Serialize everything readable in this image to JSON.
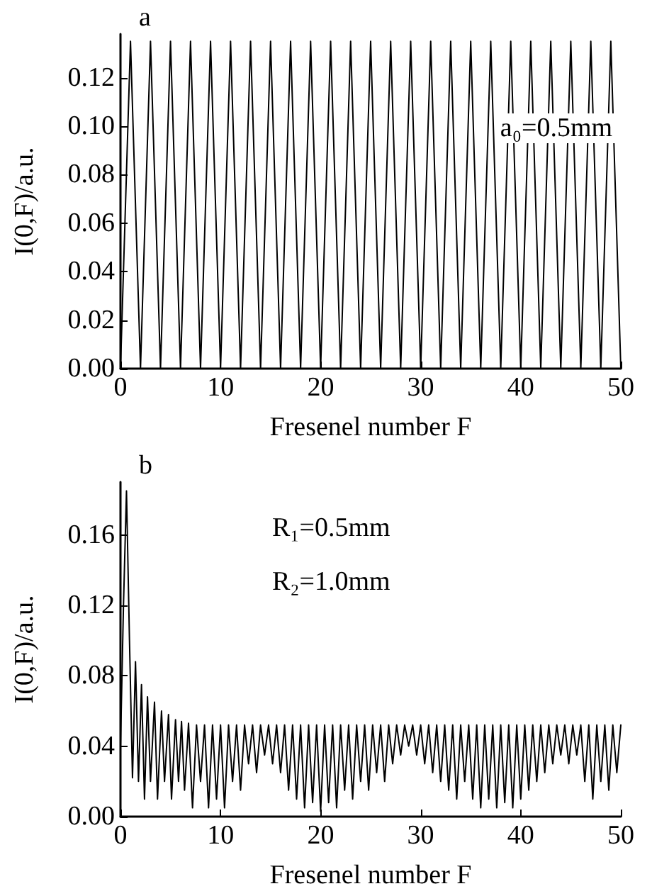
{
  "chart_data": [
    {
      "type": "line",
      "xlabel": "Fresenel number F",
      "ylabel": "I(0,F)/a.u.",
      "annotations": [
        "a",
        "a₀=0.5mm"
      ],
      "x": [
        0,
        1,
        2,
        3,
        4,
        5,
        6,
        7,
        8,
        9,
        10,
        11,
        12,
        13,
        14,
        15,
        16,
        17,
        18,
        19,
        20,
        21,
        22,
        23,
        24,
        25,
        26,
        27,
        28,
        29,
        30,
        31,
        32,
        33,
        34,
        35,
        36,
        37,
        38,
        39,
        40,
        41,
        42,
        43,
        44,
        45,
        46,
        47,
        48,
        49,
        50
      ],
      "series": [
        {
          "color": "#000000",
          "values": [
            0,
            0.135,
            0,
            0.135,
            0,
            0.135,
            0,
            0.135,
            0,
            0.135,
            0,
            0.135,
            0,
            0.135,
            0,
            0.135,
            0,
            0.135,
            0,
            0.135,
            0,
            0.135,
            0,
            0.135,
            0,
            0.135,
            0,
            0.135,
            0,
            0.135,
            0,
            0.135,
            0,
            0.135,
            0,
            0.135,
            0,
            0.135,
            0,
            0.135,
            0,
            0.135,
            0,
            0.135,
            0,
            0.135,
            0,
            0.135,
            0,
            0.135,
            0
          ]
        }
      ],
      "xlim": [
        0,
        50
      ],
      "xticks": [
        0,
        10,
        20,
        30,
        40,
        50
      ],
      "ylim": [
        0,
        0.138
      ],
      "yticks": [
        {
          "value": 0,
          "label": "0.00"
        },
        {
          "value": 0.02,
          "label": "0.02"
        },
        {
          "value": 0.04,
          "label": "0.04"
        },
        {
          "value": 0.06,
          "label": "0.06"
        },
        {
          "value": 0.08,
          "label": "0.08"
        },
        {
          "value": 0.1,
          "label": "0.10"
        },
        {
          "value": 0.12,
          "label": "0.12"
        }
      ],
      "grid": false,
      "marker": "none",
      "line_style": "solid"
    },
    {
      "type": "line",
      "xlabel": "Fresenel number F",
      "ylabel": "I(0,F)/a.u.",
      "annotations": [
        "b",
        "R₁=0.5mm",
        "R₂=1.0mm"
      ],
      "x": [
        0,
        0.3,
        0.6,
        0.9,
        1.2,
        1.5,
        1.8,
        2.1,
        2.4,
        2.7,
        3.0,
        3.4,
        3.7,
        4.1,
        4.4,
        4.8,
        5.1,
        5.5,
        5.8,
        6.1,
        6.4,
        6.8,
        7.2,
        7.6,
        8,
        8.4,
        8.8,
        9.2,
        9.6,
        10,
        10.4,
        10.8,
        11.2,
        11.6,
        12,
        12.4,
        12.8,
        13.2,
        13.6,
        14,
        14.4,
        14.8,
        15.2,
        15.6,
        16,
        16.4,
        16.8,
        17.2,
        17.6,
        18,
        18.4,
        18.8,
        19.2,
        19.6,
        20,
        20.4,
        20.8,
        21.2,
        21.6,
        22,
        22.4,
        22.8,
        23.2,
        23.6,
        24,
        24.4,
        24.8,
        25.2,
        25.6,
        26,
        26.4,
        26.8,
        27.2,
        27.6,
        28,
        28.4,
        28.8,
        29.2,
        29.6,
        30,
        30.4,
        30.8,
        31.2,
        31.6,
        32,
        32.4,
        32.8,
        33.2,
        33.6,
        34,
        34.4,
        34.8,
        35.2,
        35.6,
        36,
        36.4,
        36.8,
        37.2,
        37.6,
        38,
        38.4,
        38.8,
        39.2,
        39.6,
        40,
        40.4,
        40.8,
        41.2,
        41.6,
        42,
        42.4,
        42.8,
        43.2,
        43.6,
        44,
        44.4,
        44.8,
        45.2,
        45.6,
        46,
        46.4,
        46.8,
        47.2,
        47.6,
        48,
        48.4,
        48.8,
        49.2,
        49.6,
        50
      ],
      "series": [
        {
          "color": "#000000",
          "values": [
            0.04,
            0.12,
            0.185,
            0.1,
            0.022,
            0.088,
            0.02,
            0.075,
            0.01,
            0.068,
            0.02,
            0.065,
            0.01,
            0.06,
            0.02,
            0.058,
            0.01,
            0.055,
            0.02,
            0.054,
            0.015,
            0.053,
            0.005,
            0.052,
            0.02,
            0.052,
            0.005,
            0.052,
            0.01,
            0.052,
            0.005,
            0.052,
            0.02,
            0.052,
            0.015,
            0.052,
            0.03,
            0.052,
            0.025,
            0.052,
            0.035,
            0.052,
            0.03,
            0.052,
            0.025,
            0.052,
            0.015,
            0.052,
            0.01,
            0.052,
            0.005,
            0.052,
            0.008,
            0.052,
            0.003,
            0.052,
            0.008,
            0.052,
            0.005,
            0.052,
            0.015,
            0.052,
            0.01,
            0.052,
            0.02,
            0.052,
            0.015,
            0.052,
            0.025,
            0.052,
            0.02,
            0.052,
            0.03,
            0.052,
            0.035,
            0.052,
            0.04,
            0.052,
            0.035,
            0.052,
            0.03,
            0.052,
            0.025,
            0.052,
            0.02,
            0.052,
            0.015,
            0.052,
            0.01,
            0.052,
            0.02,
            0.052,
            0.01,
            0.052,
            0.005,
            0.052,
            0.01,
            0.052,
            0.005,
            0.052,
            0.008,
            0.052,
            0.005,
            0.052,
            0.01,
            0.052,
            0.015,
            0.052,
            0.02,
            0.052,
            0.025,
            0.052,
            0.03,
            0.052,
            0.035,
            0.052,
            0.03,
            0.052,
            0.035,
            0.052,
            0.02,
            0.052,
            0.01,
            0.052,
            0.02,
            0.052,
            0.015,
            0.052,
            0.025,
            0.052
          ]
        }
      ],
      "xlim": [
        0,
        50
      ],
      "xticks": [
        0,
        10,
        20,
        30,
        40,
        50
      ],
      "ylim": [
        0,
        0.19
      ],
      "yticks": [
        {
          "value": 0,
          "label": "0.00"
        },
        {
          "value": 0.04,
          "label": "0.04"
        },
        {
          "value": 0.08,
          "label": "0.08"
        },
        {
          "value": 0.12,
          "label": "0.12"
        },
        {
          "value": 0.16,
          "label": "0.16"
        }
      ],
      "grid": false,
      "marker": "none",
      "line_style": "solid"
    }
  ]
}
